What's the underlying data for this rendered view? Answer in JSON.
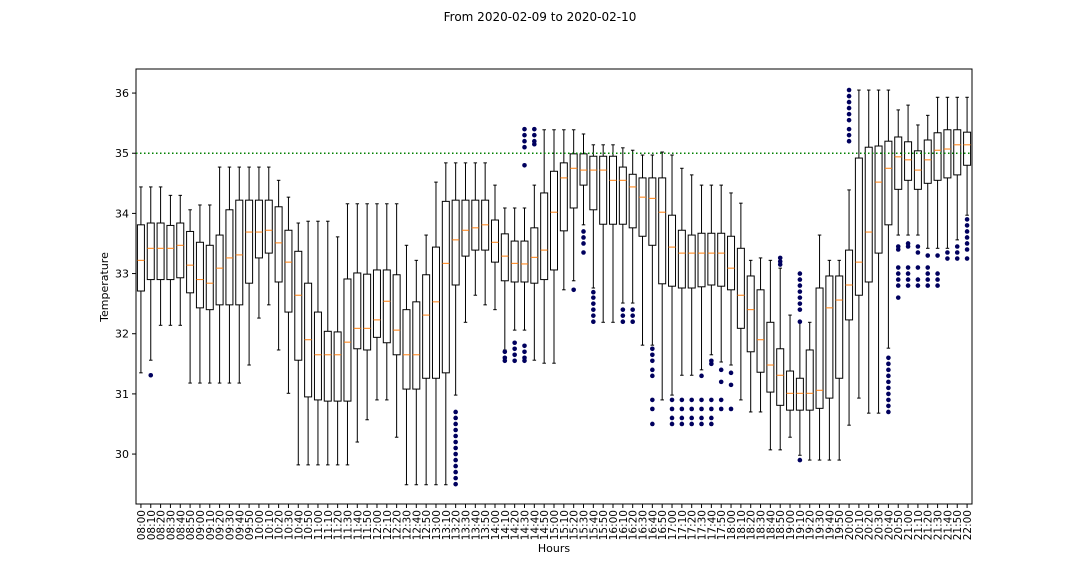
{
  "chart_data": {
    "type": "box",
    "title": "From 2020-02-09 to 2020-02-10",
    "x_label": "Hours",
    "y_label": "Temperature",
    "ylim": [
      29.17,
      36.4
    ],
    "yticks": [
      30,
      31,
      32,
      33,
      34,
      35,
      36
    ],
    "box_color": "#000000",
    "median_color": "#ff7f0e",
    "flier_color": "#00005e",
    "threshold": 35,
    "threshold_color": "#008000",
    "categories": [
      "08:00",
      "08:10",
      "08:20",
      "08:30",
      "08:40",
      "08:50",
      "09:00",
      "09:10",
      "09:20",
      "09:30",
      "09:40",
      "09:50",
      "10:00",
      "10:10",
      "10:20",
      "10:30",
      "10:40",
      "10:50",
      "11:00",
      "11:10",
      "11:20",
      "11:30",
      "11:40",
      "11:50",
      "12:00",
      "12:10",
      "12:20",
      "12:30",
      "12:40",
      "12:50",
      "13:00",
      "13:10",
      "13:20",
      "13:30",
      "13:40",
      "13:50",
      "14:00",
      "14:10",
      "14:20",
      "14:30",
      "14:40",
      "14:50",
      "15:00",
      "15:10",
      "15:20",
      "15:30",
      "15:40",
      "15:50",
      "16:00",
      "16:10",
      "16:20",
      "16:30",
      "16:40",
      "16:50",
      "17:00",
      "17:10",
      "17:20",
      "17:30",
      "17:40",
      "17:50",
      "18:00",
      "18:10",
      "18:20",
      "18:30",
      "18:40",
      "18:50",
      "19:00",
      "19:10",
      "19:20",
      "19:30",
      "19:40",
      "19:50",
      "20:00",
      "20:10",
      "20:20",
      "20:30",
      "20:40",
      "20:50",
      "21:00",
      "21:10",
      "21:20",
      "21:30",
      "21:40",
      "21:50",
      "22:00"
    ],
    "boxes": [
      {
        "low": 31.35,
        "q1": 32.71,
        "med": 33.22,
        "q3": 33.81,
        "high": 34.44
      },
      {
        "low": 31.56,
        "q1": 32.9,
        "med": 33.42,
        "q3": 33.84,
        "high": 34.44,
        "fliers": [
          31.31
        ]
      },
      {
        "low": 32.14,
        "q1": 32.9,
        "med": 33.42,
        "q3": 33.84,
        "high": 34.44
      },
      {
        "low": 32.14,
        "q1": 32.9,
        "med": 33.42,
        "q3": 33.8,
        "high": 34.3
      },
      {
        "low": 32.14,
        "q1": 32.93,
        "med": 33.47,
        "q3": 33.84,
        "high": 34.3
      },
      {
        "low": 31.18,
        "q1": 32.68,
        "med": 33.14,
        "q3": 33.7,
        "high": 34.06
      },
      {
        "low": 31.18,
        "q1": 32.43,
        "med": 32.9,
        "q3": 33.52,
        "high": 34.14
      },
      {
        "low": 31.18,
        "q1": 32.4,
        "med": 32.84,
        "q3": 33.47,
        "high": 34.14
      },
      {
        "low": 31.18,
        "q1": 32.48,
        "med": 33.09,
        "q3": 33.64,
        "high": 34.77
      },
      {
        "low": 31.18,
        "q1": 32.48,
        "med": 33.26,
        "q3": 34.06,
        "high": 34.77
      },
      {
        "low": 31.18,
        "q1": 32.48,
        "med": 33.31,
        "q3": 34.22,
        "high": 34.77
      },
      {
        "low": 31.48,
        "q1": 32.84,
        "med": 33.69,
        "q3": 34.22,
        "high": 34.77
      },
      {
        "low": 32.26,
        "q1": 33.26,
        "med": 33.69,
        "q3": 34.22,
        "high": 34.77
      },
      {
        "low": 32.48,
        "q1": 33.34,
        "med": 33.72,
        "q3": 34.22,
        "high": 34.77
      },
      {
        "low": 31.73,
        "q1": 32.86,
        "med": 33.51,
        "q3": 34.11,
        "high": 34.55
      },
      {
        "low": 31.01,
        "q1": 32.36,
        "med": 33.19,
        "q3": 33.72,
        "high": 34.27
      },
      {
        "low": 29.82,
        "q1": 31.56,
        "med": 32.64,
        "q3": 33.37,
        "high": 33.84
      },
      {
        "low": 29.82,
        "q1": 30.95,
        "med": 31.9,
        "q3": 32.84,
        "high": 33.87
      },
      {
        "low": 29.82,
        "q1": 30.9,
        "med": 31.65,
        "q3": 32.36,
        "high": 33.87
      },
      {
        "low": 29.82,
        "q1": 30.88,
        "med": 31.65,
        "q3": 32.04,
        "high": 33.87
      },
      {
        "low": 29.82,
        "q1": 30.88,
        "med": 31.65,
        "q3": 32.03,
        "high": 33.61
      },
      {
        "low": 29.82,
        "q1": 30.88,
        "med": 31.86,
        "q3": 32.91,
        "high": 34.16
      },
      {
        "low": 30.2,
        "q1": 31.75,
        "med": 32.09,
        "q3": 33.01,
        "high": 34.16
      },
      {
        "low": 30.57,
        "q1": 31.73,
        "med": 32.09,
        "q3": 32.99,
        "high": 34.16
      },
      {
        "low": 30.9,
        "q1": 31.94,
        "med": 32.23,
        "q3": 33.06,
        "high": 34.16
      },
      {
        "low": 30.9,
        "q1": 31.85,
        "med": 32.54,
        "q3": 33.06,
        "high": 34.16
      },
      {
        "low": 30.28,
        "q1": 31.65,
        "med": 32.06,
        "q3": 32.98,
        "high": 34.16
      },
      {
        "low": 29.49,
        "q1": 31.08,
        "med": 31.65,
        "q3": 32.4,
        "high": 33.47
      },
      {
        "low": 29.49,
        "q1": 31.08,
        "med": 31.65,
        "q3": 32.53,
        "high": 33.22
      },
      {
        "low": 29.49,
        "q1": 31.26,
        "med": 32.31,
        "q3": 32.98,
        "high": 33.64
      },
      {
        "low": 29.49,
        "q1": 31.26,
        "med": 32.53,
        "q3": 33.44,
        "high": 34.52
      },
      {
        "low": 29.49,
        "q1": 31.35,
        "med": 33.17,
        "q3": 34.2,
        "high": 34.84
      },
      {
        "low": 30.98,
        "q1": 32.81,
        "med": 33.56,
        "q3": 34.22,
        "high": 34.84,
        "fliers": [
          30.7,
          30.6,
          30.5,
          30.4,
          30.3,
          30.2,
          30.1,
          30.0,
          29.9,
          29.8,
          29.7,
          29.6,
          29.5
        ]
      },
      {
        "low": 32.19,
        "q1": 33.29,
        "med": 33.72,
        "q3": 34.22,
        "high": 34.84
      },
      {
        "low": 32.64,
        "q1": 33.39,
        "med": 33.76,
        "q3": 34.22,
        "high": 34.84
      },
      {
        "low": 32.48,
        "q1": 33.39,
        "med": 33.81,
        "q3": 34.22,
        "high": 34.84
      },
      {
        "low": 32.4,
        "q1": 33.19,
        "med": 33.52,
        "q3": 33.89,
        "high": 34.47
      },
      {
        "low": 31.73,
        "q1": 32.88,
        "med": 33.29,
        "q3": 33.66,
        "high": 34.09,
        "fliers": [
          31.7,
          31.6,
          31.55
        ]
      },
      {
        "low": 32.06,
        "q1": 32.86,
        "med": 33.17,
        "q3": 33.54,
        "high": 34.09,
        "fliers": [
          31.85,
          31.75,
          31.65,
          31.55
        ]
      },
      {
        "low": 32.06,
        "q1": 32.86,
        "med": 33.16,
        "q3": 33.54,
        "high": 34.09,
        "fliers": [
          35.4,
          35.3,
          35.2,
          35.1,
          34.8,
          31.8,
          31.7,
          31.6,
          31.55
        ]
      },
      {
        "low": 31.56,
        "q1": 32.84,
        "med": 33.27,
        "q3": 33.76,
        "high": 34.47,
        "fliers": [
          35.4,
          35.3,
          35.2,
          35.15
        ]
      },
      {
        "low": 31.51,
        "q1": 32.9,
        "med": 33.39,
        "q3": 34.34,
        "high": 35.39
      },
      {
        "low": 31.51,
        "q1": 33.06,
        "med": 34.02,
        "q3": 34.7,
        "high": 35.39
      },
      {
        "low": 32.73,
        "q1": 33.71,
        "med": 34.59,
        "q3": 34.84,
        "high": 35.39
      },
      {
        "low": 32.88,
        "q1": 34.09,
        "med": 34.75,
        "q3": 34.99,
        "high": 35.39,
        "fliers": [
          32.73
        ]
      },
      {
        "low": 33.81,
        "q1": 34.47,
        "med": 34.72,
        "q3": 34.99,
        "high": 35.32,
        "fliers": [
          33.7,
          33.6,
          33.5,
          33.35
        ]
      },
      {
        "low": 32.76,
        "q1": 34.06,
        "med": 34.72,
        "q3": 34.95,
        "high": 35.14,
        "fliers": [
          32.69,
          32.6,
          32.5,
          32.4,
          32.3,
          32.2
        ]
      },
      {
        "low": 32.19,
        "q1": 33.82,
        "med": 34.72,
        "q3": 34.95,
        "high": 35.14
      },
      {
        "low": 32.19,
        "q1": 33.82,
        "med": 34.55,
        "q3": 34.95,
        "high": 35.14
      },
      {
        "low": 32.51,
        "q1": 33.82,
        "med": 34.55,
        "q3": 34.77,
        "high": 35.09,
        "fliers": [
          32.4,
          32.3,
          32.2
        ]
      },
      {
        "low": 32.51,
        "q1": 33.76,
        "med": 34.44,
        "q3": 34.65,
        "high": 35.05,
        "fliers": [
          32.4,
          32.3,
          32.2
        ]
      },
      {
        "low": 31.81,
        "q1": 33.62,
        "med": 34.27,
        "q3": 34.59,
        "high": 34.97
      },
      {
        "low": 31.81,
        "q1": 33.47,
        "med": 34.25,
        "q3": 34.59,
        "high": 34.97,
        "fliers": [
          31.75,
          31.65,
          31.55,
          31.4,
          31.3,
          30.9,
          30.75,
          30.5
        ]
      },
      {
        "low": 30.9,
        "q1": 32.83,
        "med": 34.02,
        "q3": 34.59,
        "high": 35.02
      },
      {
        "low": 30.98,
        "q1": 32.79,
        "med": 33.44,
        "q3": 33.97,
        "high": 34.97,
        "fliers": [
          30.9,
          30.75,
          30.6,
          30.5
        ]
      },
      {
        "low": 31.31,
        "q1": 32.76,
        "med": 33.34,
        "q3": 33.72,
        "high": 34.75,
        "fliers": [
          30.9,
          30.75,
          30.6,
          30.5
        ]
      },
      {
        "low": 31.31,
        "q1": 32.76,
        "med": 33.34,
        "q3": 33.64,
        "high": 34.64,
        "fliers": [
          30.9,
          30.75,
          30.6,
          30.5
        ]
      },
      {
        "low": 31.4,
        "q1": 32.78,
        "med": 33.34,
        "q3": 33.67,
        "high": 34.47,
        "fliers": [
          31.3,
          30.9,
          30.75,
          30.6,
          30.5
        ]
      },
      {
        "low": 31.65,
        "q1": 32.81,
        "med": 33.34,
        "q3": 33.67,
        "high": 34.47,
        "fliers": [
          31.55,
          31.5,
          30.9,
          30.75,
          30.6,
          30.5
        ]
      },
      {
        "low": 31.53,
        "q1": 32.79,
        "med": 33.34,
        "q3": 33.67,
        "high": 34.47,
        "fliers": [
          31.4,
          31.2,
          30.9,
          30.75
        ]
      },
      {
        "low": 31.48,
        "q1": 32.73,
        "med": 33.09,
        "q3": 33.62,
        "high": 34.34,
        "fliers": [
          31.35,
          31.15,
          30.75
        ]
      },
      {
        "low": 30.9,
        "q1": 32.09,
        "med": 32.64,
        "q3": 33.42,
        "high": 34.17
      },
      {
        "low": 30.7,
        "q1": 31.7,
        "med": 32.4,
        "q3": 32.96,
        "high": 33.22
      },
      {
        "low": 30.7,
        "q1": 31.36,
        "med": 31.9,
        "q3": 32.73,
        "high": 33.26
      },
      {
        "low": 30.07,
        "q1": 31.03,
        "med": 31.48,
        "q3": 32.19,
        "high": 33.22
      },
      {
        "low": 30.07,
        "q1": 30.81,
        "med": 31.31,
        "q3": 31.75,
        "high": 33.09,
        "fliers": [
          33.26,
          33.2,
          33.15
        ]
      },
      {
        "low": 30.28,
        "q1": 30.73,
        "med": 31.01,
        "q3": 31.38,
        "high": 32.31
      },
      {
        "low": 29.98,
        "q1": 30.73,
        "med": 31.01,
        "q3": 31.26,
        "high": 32.19,
        "fliers": [
          33.0,
          32.9,
          32.8,
          32.7,
          32.6,
          32.5,
          32.4,
          32.2,
          29.9
        ]
      },
      {
        "low": 29.9,
        "q1": 30.73,
        "med": 31.01,
        "q3": 31.73,
        "high": 32.19
      },
      {
        "low": 29.9,
        "q1": 30.76,
        "med": 31.06,
        "q3": 32.76,
        "high": 33.64
      },
      {
        "low": 29.9,
        "q1": 30.93,
        "med": 32.43,
        "q3": 32.96,
        "high": 33.22
      },
      {
        "low": 29.9,
        "q1": 31.26,
        "med": 32.56,
        "q3": 32.96,
        "high": 33.22
      },
      {
        "low": 30.48,
        "q1": 32.23,
        "med": 32.81,
        "q3": 33.39,
        "high": 34.39,
        "fliers": [
          36.05,
          35.95,
          35.85,
          35.75,
          35.65,
          35.55,
          35.4,
          35.3,
          35.2
        ]
      },
      {
        "low": 30.93,
        "q1": 32.64,
        "med": 33.19,
        "q3": 34.92,
        "high": 36.05
      },
      {
        "low": 30.68,
        "q1": 32.86,
        "med": 33.69,
        "q3": 35.1,
        "high": 36.05
      },
      {
        "low": 30.68,
        "q1": 33.34,
        "med": 34.52,
        "q3": 35.12,
        "high": 36.05
      },
      {
        "low": 31.76,
        "q1": 33.81,
        "med": 34.75,
        "q3": 35.2,
        "high": 36.05,
        "fliers": [
          31.6,
          31.5,
          31.4,
          31.3,
          31.2,
          31.1,
          31.0,
          30.9,
          30.8,
          30.7
        ]
      },
      {
        "low": 33.64,
        "q1": 34.4,
        "med": 34.94,
        "q3": 35.27,
        "high": 35.72,
        "fliers": [
          33.45,
          33.4,
          33.1,
          33.0,
          32.9,
          32.8,
          32.6
        ]
      },
      {
        "low": 33.64,
        "q1": 34.55,
        "med": 34.89,
        "q3": 35.19,
        "high": 35.8,
        "fliers": [
          33.5,
          33.45,
          33.1,
          33.0,
          32.9,
          32.8
        ]
      },
      {
        "low": 33.64,
        "q1": 34.4,
        "med": 34.72,
        "q3": 35.04,
        "high": 35.47,
        "fliers": [
          33.45,
          33.35,
          33.1,
          32.9,
          32.8
        ]
      },
      {
        "low": 33.42,
        "q1": 34.5,
        "med": 34.89,
        "q3": 35.22,
        "high": 35.63,
        "fliers": [
          33.3,
          33.1,
          33.0,
          32.9,
          32.8
        ]
      },
      {
        "low": 33.42,
        "q1": 34.55,
        "med": 35.05,
        "q3": 35.34,
        "high": 35.93,
        "fliers": [
          33.3,
          33.0,
          32.9,
          32.8
        ]
      },
      {
        "low": 33.42,
        "q1": 34.59,
        "med": 35.07,
        "q3": 35.39,
        "high": 35.93,
        "fliers": [
          33.35,
          33.25
        ]
      },
      {
        "low": 33.56,
        "q1": 34.64,
        "med": 35.14,
        "q3": 35.39,
        "high": 35.93,
        "fliers": [
          33.45,
          33.35,
          33.25
        ]
      },
      {
        "low": 33.97,
        "q1": 34.8,
        "med": 35.14,
        "q3": 35.35,
        "high": 35.93,
        "fliers": [
          33.9,
          33.8,
          33.7,
          33.6,
          33.5,
          33.4,
          33.25
        ]
      }
    ]
  }
}
